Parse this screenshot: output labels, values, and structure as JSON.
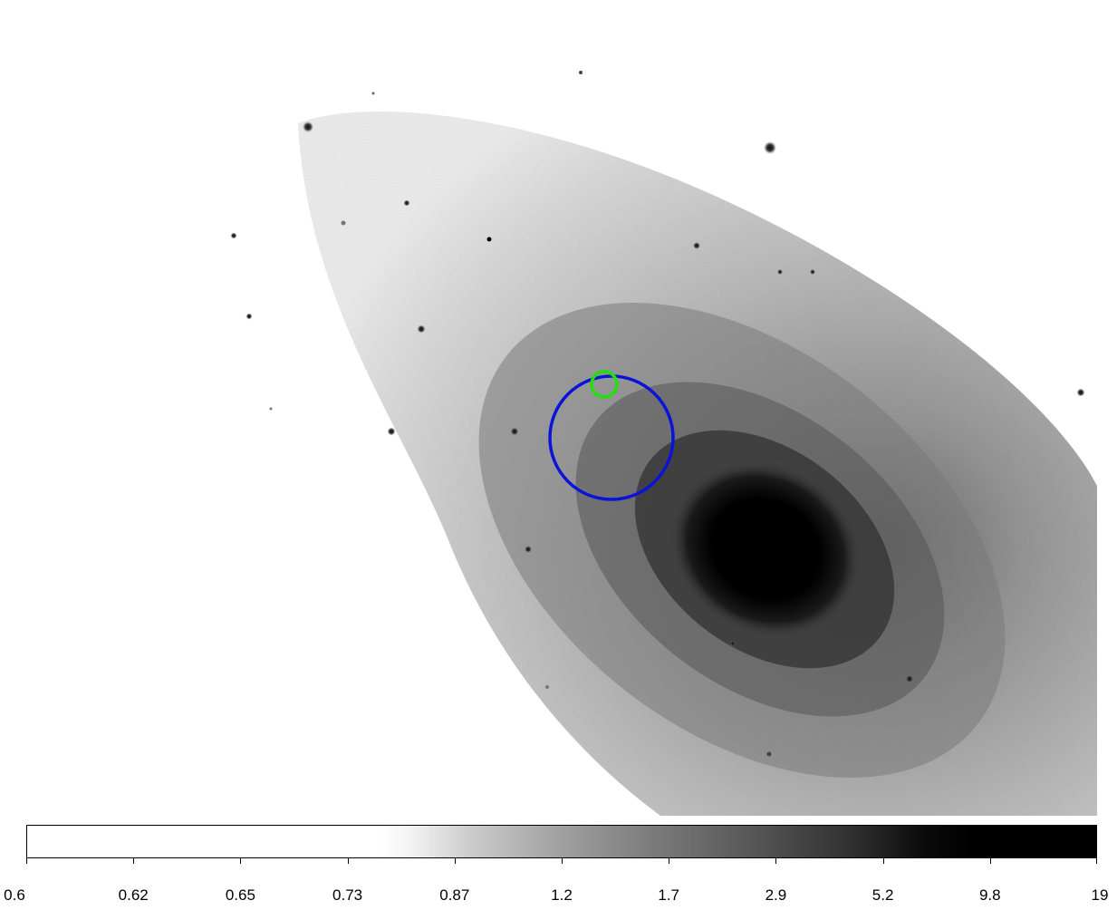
{
  "colorbar": {
    "tick_labels": [
      "0.6",
      "0.62",
      "0.65",
      "0.73",
      "0.87",
      "1.2",
      "1.7",
      "2.9",
      "5.2",
      "9.8",
      "19"
    ]
  },
  "regions": [
    {
      "label": "blue-circle-region",
      "color": "#0a14d8"
    },
    {
      "label": "green-circle-region",
      "color": "#22e00a"
    }
  ],
  "colors": {
    "background": "#ffffff",
    "galaxy_core": "#000000"
  }
}
